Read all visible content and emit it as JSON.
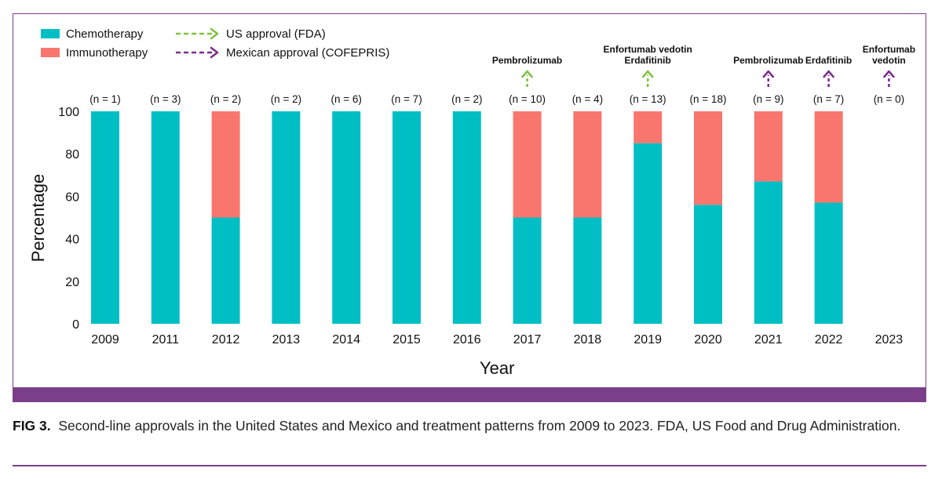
{
  "chart_data": {
    "type": "bar",
    "stacked": true,
    "categories": [
      "2009",
      "2011",
      "2012",
      "2013",
      "2014",
      "2015",
      "2016",
      "2017",
      "2018",
      "2019",
      "2020",
      "2021",
      "2022",
      "2023"
    ],
    "counts": [
      "(n = 1)",
      "(n = 3)",
      "(n = 2)",
      "(n = 2)",
      "(n = 6)",
      "(n = 7)",
      "(n = 2)",
      "(n = 10)",
      "(n = 4)",
      "(n = 13)",
      "(n = 18)",
      "(n = 9)",
      "(n = 7)",
      "(n = 0)"
    ],
    "series": [
      {
        "name": "Chemotherapy",
        "color": "#00bfc4",
        "values": [
          100,
          100,
          50,
          100,
          100,
          100,
          100,
          50,
          50,
          85,
          56,
          67,
          57,
          0
        ]
      },
      {
        "name": "Immunotherapy",
        "color": "#f8766d",
        "values": [
          0,
          0,
          50,
          0,
          0,
          0,
          0,
          50,
          50,
          15,
          44,
          33,
          43,
          0
        ]
      }
    ],
    "xlabel": "Year",
    "ylabel": "Percentage",
    "ylim": [
      0,
      100
    ],
    "yticks": [
      0,
      20,
      40,
      60,
      80,
      100
    ],
    "legend": [
      {
        "label": "Chemotherapy",
        "kind": "swatch",
        "color": "#00bfc4"
      },
      {
        "label": "Immunotherapy",
        "kind": "swatch",
        "color": "#f8766d"
      },
      {
        "label": "US approval (FDA)",
        "kind": "arrow",
        "color": "#7dc242"
      },
      {
        "label": "Mexican approval (COFEPRIS)",
        "kind": "arrow",
        "color": "#7b2d8b"
      }
    ],
    "approvals": [
      {
        "year": "2017",
        "agency": "FDA",
        "color": "#7dc242",
        "labels": [
          "Pembrolizumab"
        ]
      },
      {
        "year": "2019",
        "agency": "FDA",
        "color": "#7dc242",
        "labels": [
          "Enfortumab vedotin",
          "Erdafitinib"
        ]
      },
      {
        "year": "2021",
        "agency": "COFEPRIS",
        "color": "#7b2d8b",
        "labels": [
          "Pembrolizumab"
        ]
      },
      {
        "year": "2022",
        "agency": "COFEPRIS",
        "color": "#7b2d8b",
        "labels": [
          "Erdafitinib"
        ]
      },
      {
        "year": "2023",
        "agency": "COFEPRIS",
        "color": "#7b2d8b",
        "labels": [
          "Enfortumab",
          "vedotin"
        ]
      }
    ]
  },
  "caption": {
    "label": "FIG 3.",
    "text": "Second-line approvals in the United States and Mexico and treatment patterns from 2009 to 2023. FDA, US Food and Drug Administration."
  },
  "colors": {
    "frame": "#7b3f8a"
  }
}
